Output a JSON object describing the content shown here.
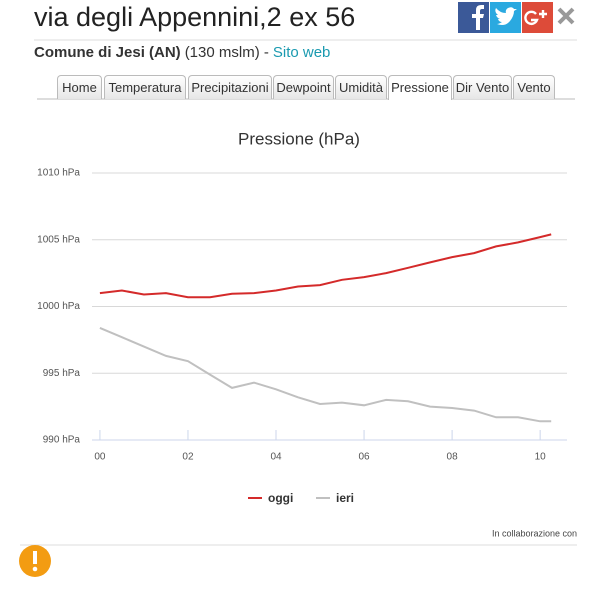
{
  "header": {
    "title": "via degli Appennini,2 ex 56",
    "place": "Comune di Jesi (AN)",
    "altitude": "(130 mslm) -",
    "link": "Sito web"
  },
  "tabs": [
    "Home",
    "Temperatura",
    "Precipitazioni",
    "Dewpoint",
    "Umidità",
    "Pressione",
    "Dir Vento",
    "Vento"
  ],
  "active_tab": 5,
  "chart_data": {
    "type": "line",
    "title": "Pressione (hPa)",
    "x": [
      0,
      0.5,
      1,
      1.5,
      2,
      2.5,
      3,
      3.5,
      4,
      4.5,
      5,
      5.5,
      6,
      6.5,
      7,
      7.5,
      8,
      8.5,
      9,
      9.5,
      10,
      10.25
    ],
    "series": [
      {
        "name": "oggi",
        "color": "#d42a2a",
        "values": [
          1001.0,
          1001.2,
          1000.9,
          1001.0,
          1000.7,
          1000.7,
          1000.95,
          1001.0,
          1001.2,
          1001.5,
          1001.6,
          1002.0,
          1002.2,
          1002.5,
          1002.9,
          1003.3,
          1003.7,
          1004.0,
          1004.5,
          1004.8,
          1005.2,
          1005.4
        ]
      },
      {
        "name": "ieri",
        "color": "#c0c0c0",
        "values": [
          998.4,
          997.7,
          997.0,
          996.3,
          995.9,
          994.9,
          993.9,
          994.3,
          993.8,
          993.2,
          992.7,
          992.8,
          992.6,
          993.0,
          992.9,
          992.5,
          992.4,
          992.2,
          991.7,
          991.7,
          991.4,
          991.4
        ]
      }
    ],
    "xlim": [
      -0.18,
      10.61
    ],
    "ylim": [
      990,
      1010
    ],
    "xticks": [
      {
        "value": 0,
        "label": "00"
      },
      {
        "value": 2,
        "label": "02"
      },
      {
        "value": 4,
        "label": "04"
      },
      {
        "value": 6,
        "label": "06"
      },
      {
        "value": 8,
        "label": "08"
      },
      {
        "value": 10,
        "label": "10"
      }
    ],
    "yticks": [
      {
        "value": 990,
        "label": "990 hPa"
      },
      {
        "value": 995,
        "label": "995 hPa"
      },
      {
        "value": 1000,
        "label": "1000 hPa"
      },
      {
        "value": 1005,
        "label": "1005 hPa"
      },
      {
        "value": 1010,
        "label": "1010 hPa"
      }
    ],
    "grid": true,
    "legend": "bottom",
    "credit": "In collaborazione con"
  }
}
